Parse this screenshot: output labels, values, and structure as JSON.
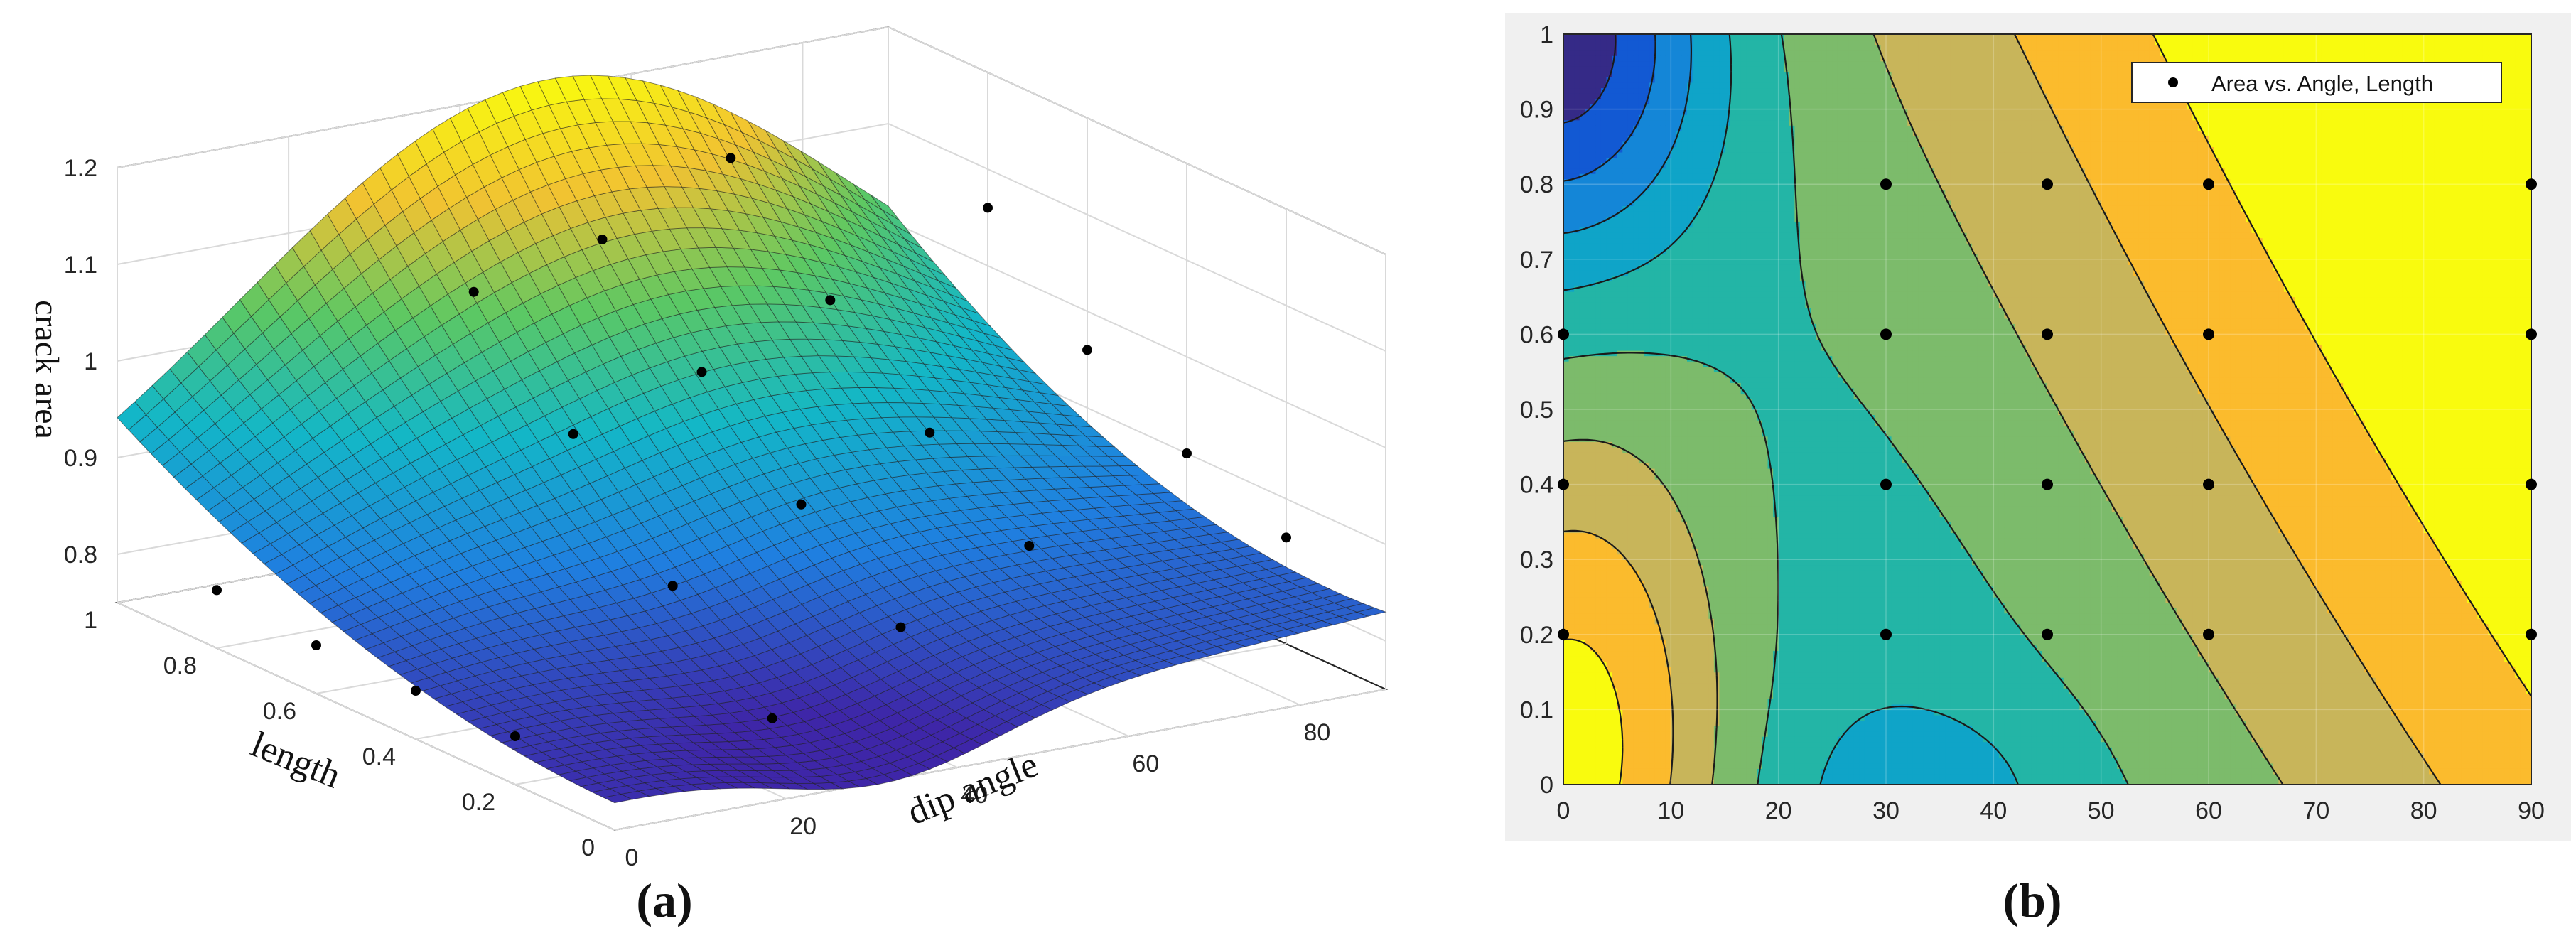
{
  "chart_data": [
    {
      "panel": "a",
      "type": "surface3d",
      "caption": "(a)",
      "xlabel": "length",
      "ylabel": "dip angle",
      "zlabel": "crack area",
      "xlim": [
        0,
        1
      ],
      "ylim": [
        0,
        90
      ],
      "zlim": [
        0.75,
        1.2
      ],
      "xticks": [
        0,
        0.2,
        0.4,
        0.6,
        0.8,
        1
      ],
      "xtick_labels": [
        "0",
        "0.2",
        "0.4",
        "0.6",
        "0.8",
        "1"
      ],
      "yticks": [
        0,
        20,
        40,
        60,
        80
      ],
      "ytick_labels": [
        "0",
        "20",
        "40",
        "60",
        "80"
      ],
      "zticks": [
        0.8,
        0.9,
        1.0,
        1.1,
        1.2
      ],
      "ztick_labels": [
        "0.8",
        "0.9",
        "1",
        "1.1",
        "1.2"
      ],
      "grid": true,
      "colormap": [
        "#3e26a8",
        "#1f7fe0",
        "#13b7c7",
        "#5cc863",
        "#f1c232",
        "#f9fb0e"
      ],
      "points": [
        {
          "length": 0.2,
          "angle": 0,
          "area": 0.8
        },
        {
          "length": 0.4,
          "angle": 0,
          "area": 0.8
        },
        {
          "length": 0.6,
          "angle": 0,
          "area": 0.8
        },
        {
          "length": 0.8,
          "angle": 0,
          "area": 0.81
        },
        {
          "length": 0.2,
          "angle": 30,
          "area": 0.77
        },
        {
          "length": 0.4,
          "angle": 30,
          "area": 0.86
        },
        {
          "length": 0.6,
          "angle": 30,
          "area": 0.97
        },
        {
          "length": 0.8,
          "angle": 30,
          "area": 1.07
        },
        {
          "length": 0.2,
          "angle": 45,
          "area": 0.84
        },
        {
          "length": 0.4,
          "angle": 45,
          "area": 0.92
        },
        {
          "length": 0.6,
          "angle": 45,
          "area": 1.01
        },
        {
          "length": 0.8,
          "angle": 45,
          "area": 1.1
        },
        {
          "length": 0.2,
          "angle": 60,
          "area": 0.9
        },
        {
          "length": 0.4,
          "angle": 60,
          "area": 0.97
        },
        {
          "length": 0.6,
          "angle": 60,
          "area": 1.06
        },
        {
          "length": 0.8,
          "angle": 60,
          "area": 1.16
        },
        {
          "length": 0.2,
          "angle": 90,
          "area": 0.86
        },
        {
          "length": 0.4,
          "angle": 90,
          "area": 0.9
        },
        {
          "length": 0.6,
          "angle": 90,
          "area": 0.96
        },
        {
          "length": 0.8,
          "angle": 90,
          "area": 1.06
        }
      ]
    },
    {
      "panel": "b",
      "type": "contour",
      "caption": "(b)",
      "xlim": [
        0,
        90
      ],
      "ylim": [
        0,
        1
      ],
      "xticks": [
        0,
        10,
        20,
        30,
        40,
        50,
        60,
        70,
        80,
        90
      ],
      "xtick_labels": [
        "0",
        "10",
        "20",
        "30",
        "40",
        "50",
        "60",
        "70",
        "80",
        "90"
      ],
      "yticks": [
        0,
        0.1,
        0.2,
        0.3,
        0.4,
        0.5,
        0.6,
        0.7,
        0.8,
        0.9,
        1
      ],
      "ytick_labels": [
        "0",
        "0.1",
        "0.2",
        "0.3",
        "0.4",
        "0.5",
        "0.6",
        "0.7",
        "0.8",
        "0.9",
        "1"
      ],
      "grid": true,
      "legend": {
        "label": "Area vs. Angle, Length",
        "placement": "top-right"
      },
      "level_colors": [
        "#352a87",
        "#1259d3",
        "#1486d7",
        "#0fa4c8",
        "#23b5a6",
        "#7cbb6b",
        "#c8b55a",
        "#fbbb2d",
        "#f9fb0e"
      ],
      "points": [
        {
          "angle": 0,
          "length": 0.2
        },
        {
          "angle": 0,
          "length": 0.4
        },
        {
          "angle": 0,
          "length": 0.6
        },
        {
          "angle": 30,
          "length": 0.2
        },
        {
          "angle": 30,
          "length": 0.4
        },
        {
          "angle": 30,
          "length": 0.6
        },
        {
          "angle": 30,
          "length": 0.8
        },
        {
          "angle": 45,
          "length": 0.2
        },
        {
          "angle": 45,
          "length": 0.4
        },
        {
          "angle": 45,
          "length": 0.6
        },
        {
          "angle": 45,
          "length": 0.8
        },
        {
          "angle": 60,
          "length": 0.2
        },
        {
          "angle": 60,
          "length": 0.4
        },
        {
          "angle": 60,
          "length": 0.6
        },
        {
          "angle": 60,
          "length": 0.8
        },
        {
          "angle": 90,
          "length": 0.2
        },
        {
          "angle": 90,
          "length": 0.4
        },
        {
          "angle": 90,
          "length": 0.6
        },
        {
          "angle": 90,
          "length": 0.8
        }
      ]
    }
  ]
}
